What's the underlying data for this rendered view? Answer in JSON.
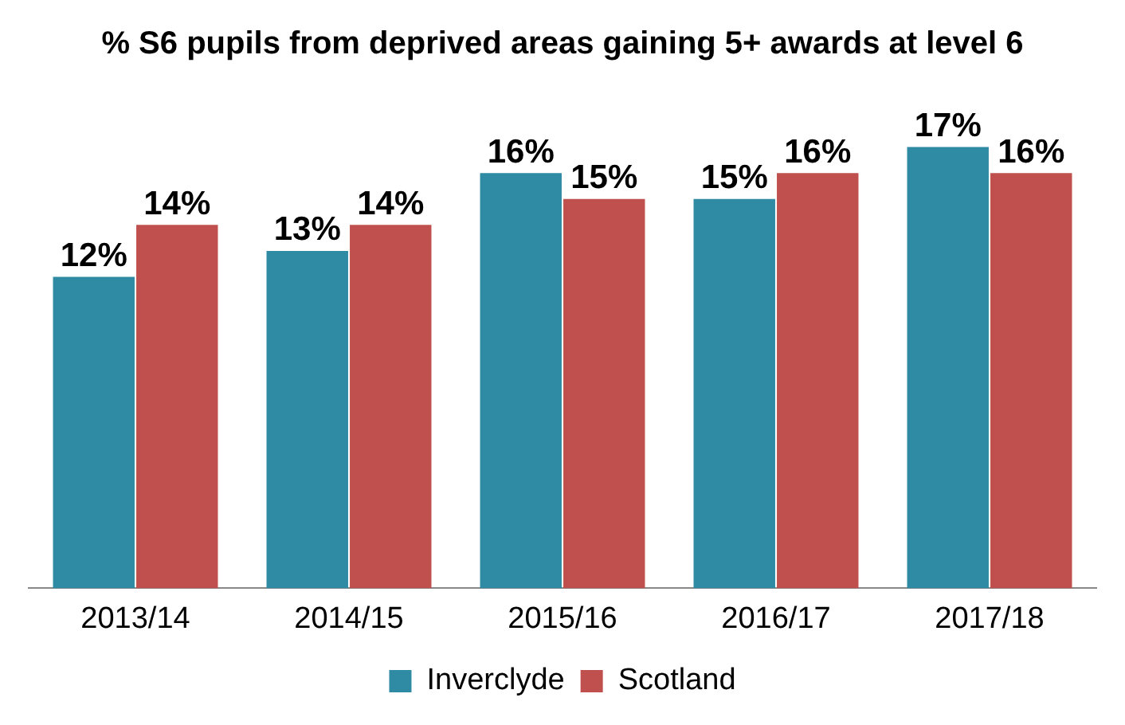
{
  "chart_data": {
    "type": "bar",
    "title": "% S6 pupils from deprived areas gaining 5+ awards at level 6",
    "categories": [
      "2013/14",
      "2014/15",
      "2015/16",
      "2016/17",
      "2017/18"
    ],
    "series": [
      {
        "name": "Inverclyde",
        "color": "#2f8aa3",
        "values": [
          12,
          13,
          16,
          15,
          17
        ],
        "value_labels": [
          "12%",
          "13%",
          "16%",
          "15%",
          "17%"
        ]
      },
      {
        "name": "Scotland",
        "color": "#c0504d",
        "values": [
          14,
          14,
          15,
          16,
          16
        ],
        "value_labels": [
          "14%",
          "14%",
          "15%",
          "16%",
          "16%"
        ]
      }
    ],
    "legend": "bottom",
    "grid": false
  }
}
